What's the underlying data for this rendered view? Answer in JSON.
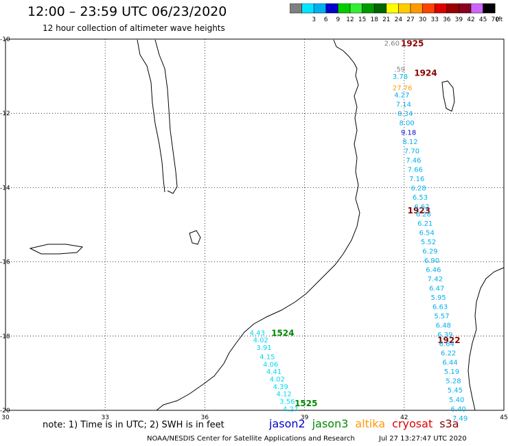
{
  "header": {
    "title": "12:00 – 23:59 UTC 06/23/2020",
    "subtitle": "12 hour collection of altimeter wave heights"
  },
  "legend": {
    "unit": "(ft)",
    "bins": [
      {
        "label": "",
        "color": "#808080"
      },
      {
        "label": "3",
        "color": "#00e5ff"
      },
      {
        "label": "6",
        "color": "#00b0ee"
      },
      {
        "label": "9",
        "color": "#0000cc"
      },
      {
        "label": "12",
        "color": "#00cc00"
      },
      {
        "label": "15",
        "color": "#33ee33"
      },
      {
        "label": "18",
        "color": "#009900"
      },
      {
        "label": "21",
        "color": "#006600"
      },
      {
        "label": "24",
        "color": "#ffff00"
      },
      {
        "label": "27",
        "color": "#ffcc00"
      },
      {
        "label": "30",
        "color": "#ff9900"
      },
      {
        "label": "33",
        "color": "#ff4400"
      },
      {
        "label": "36",
        "color": "#dd0000"
      },
      {
        "label": "39",
        "color": "#990000"
      },
      {
        "label": "42",
        "color": "#880022"
      },
      {
        "label": "45",
        "color": "#cc66ff"
      },
      {
        "label": "70",
        "color": "#000000"
      }
    ]
  },
  "axes": {
    "lon_labels": [
      "30",
      "33",
      "36",
      "39",
      "42",
      "45"
    ],
    "lat_labels": [
      "-10",
      "-12",
      "-14",
      "-16",
      "-18",
      "-20"
    ]
  },
  "colors": {
    "gray": "#808080",
    "cyan": "#00b0ee",
    "light_cyan": "#00d8f0",
    "orange": "#ff9900",
    "dark_red": "#8b0000",
    "navy": "#0000cc",
    "green": "#008800"
  },
  "track_labels": [
    {
      "text": "1925",
      "lon": 41.9,
      "lat": -10.1,
      "color": "#8b0000"
    },
    {
      "text": "1924",
      "lon": 42.3,
      "lat": -10.9,
      "color": "#8b0000"
    },
    {
      "text": "1923",
      "lon": 42.1,
      "lat": -14.6,
      "color": "#8b0000"
    },
    {
      "text": "1922",
      "lon": 43.0,
      "lat": -18.1,
      "color": "#8b0000"
    },
    {
      "text": "1524",
      "lon": 38.0,
      "lat": -17.9,
      "color": "#008800"
    },
    {
      "text": "1525",
      "lon": 38.7,
      "lat": -19.8,
      "color": "#008800"
    }
  ],
  "wave_labels": [
    {
      "text": "2.60",
      "lon": 41.4,
      "lat": -10.1,
      "color": "#808080"
    },
    {
      "text": ".59",
      "lon": 41.7,
      "lat": -10.8,
      "color": "#808080"
    },
    {
      "text": "3.78",
      "lon": 41.65,
      "lat": -11.0,
      "color": "#00b0ee"
    },
    {
      "text": "27.76",
      "lon": 41.65,
      "lat": -11.3,
      "color": "#ff9900"
    },
    {
      "text": "4.27",
      "lon": 41.7,
      "lat": -11.5,
      "color": "#00b0ee"
    },
    {
      "text": "7.14",
      "lon": 41.75,
      "lat": -11.75,
      "color": "#00b0ee"
    },
    {
      "text": "8.34",
      "lon": 41.8,
      "lat": -12.0,
      "color": "#00b0ee"
    },
    {
      "text": "8.00",
      "lon": 41.85,
      "lat": -12.25,
      "color": "#00b0ee"
    },
    {
      "text": "9.18",
      "lon": 41.9,
      "lat": -12.5,
      "color": "#0000cc"
    },
    {
      "text": "8.12",
      "lon": 41.95,
      "lat": -12.75,
      "color": "#00b0ee"
    },
    {
      "text": "7.70",
      "lon": 42.0,
      "lat": -13.0,
      "color": "#00b0ee"
    },
    {
      "text": "7.46",
      "lon": 42.05,
      "lat": -13.25,
      "color": "#00b0ee"
    },
    {
      "text": "7.66",
      "lon": 42.1,
      "lat": -13.5,
      "color": "#00b0ee"
    },
    {
      "text": "7.16",
      "lon": 42.15,
      "lat": -13.75,
      "color": "#00b0ee"
    },
    {
      "text": "6.28",
      "lon": 42.2,
      "lat": -14.0,
      "color": "#00b0ee"
    },
    {
      "text": "6.53",
      "lon": 42.25,
      "lat": -14.25,
      "color": "#00b0ee"
    },
    {
      "text": "6.62",
      "lon": 42.3,
      "lat": -14.5,
      "color": "#00b0ee"
    },
    {
      "text": "6.28",
      "lon": 42.35,
      "lat": -14.7,
      "color": "#00b0ee"
    },
    {
      "text": "6.21",
      "lon": 42.4,
      "lat": -14.95,
      "color": "#00b0ee"
    },
    {
      "text": "6.54",
      "lon": 42.45,
      "lat": -15.2,
      "color": "#00b0ee"
    },
    {
      "text": "5.52",
      "lon": 42.5,
      "lat": -15.45,
      "color": "#00b0ee"
    },
    {
      "text": "6.29",
      "lon": 42.55,
      "lat": -15.7,
      "color": "#00b0ee"
    },
    {
      "text": "6.90",
      "lon": 42.6,
      "lat": -15.95,
      "color": "#00b0ee"
    },
    {
      "text": "6.46",
      "lon": 42.65,
      "lat": -16.2,
      "color": "#00b0ee"
    },
    {
      "text": "7.42",
      "lon": 42.7,
      "lat": -16.45,
      "color": "#00b0ee"
    },
    {
      "text": "6.47",
      "lon": 42.75,
      "lat": -16.7,
      "color": "#00b0ee"
    },
    {
      "text": "5.95",
      "lon": 42.8,
      "lat": -16.95,
      "color": "#00b0ee"
    },
    {
      "text": "6.63",
      "lon": 42.85,
      "lat": -17.2,
      "color": "#00b0ee"
    },
    {
      "text": "5.57",
      "lon": 42.9,
      "lat": -17.45,
      "color": "#00b0ee"
    },
    {
      "text": "6.48",
      "lon": 42.95,
      "lat": -17.7,
      "color": "#00b0ee"
    },
    {
      "text": "6.39",
      "lon": 43.0,
      "lat": -17.95,
      "color": "#00b0ee"
    },
    {
      "text": "6.64",
      "lon": 43.05,
      "lat": -18.2,
      "color": "#00b0ee"
    },
    {
      "text": "6.22",
      "lon": 43.1,
      "lat": -18.45,
      "color": "#00b0ee"
    },
    {
      "text": "6.44",
      "lon": 43.15,
      "lat": -18.7,
      "color": "#00b0ee"
    },
    {
      "text": "5.19",
      "lon": 43.2,
      "lat": -18.95,
      "color": "#00b0ee"
    },
    {
      "text": "5.28",
      "lon": 43.25,
      "lat": -19.2,
      "color": "#00b0ee"
    },
    {
      "text": "5.45",
      "lon": 43.3,
      "lat": -19.45,
      "color": "#00b0ee"
    },
    {
      "text": "5.40",
      "lon": 43.35,
      "lat": -19.7,
      "color": "#00b0ee"
    },
    {
      "text": "6.40",
      "lon": 43.4,
      "lat": -19.95,
      "color": "#00b0ee"
    },
    {
      "text": "7.49",
      "lon": 43.45,
      "lat": -20.2,
      "color": "#00b0ee"
    },
    {
      "text": "4.43",
      "lon": 37.35,
      "lat": -17.9,
      "color": "#00d8f0"
    },
    {
      "text": "4.02",
      "lon": 37.45,
      "lat": -18.1,
      "color": "#00d8f0"
    },
    {
      "text": "3.91",
      "lon": 37.55,
      "lat": -18.3,
      "color": "#00d8f0"
    },
    {
      "text": "4.15",
      "lon": 37.65,
      "lat": -18.55,
      "color": "#00d8f0"
    },
    {
      "text": "4.06",
      "lon": 37.75,
      "lat": -18.75,
      "color": "#00d8f0"
    },
    {
      "text": "4.41",
      "lon": 37.85,
      "lat": -18.95,
      "color": "#00d8f0"
    },
    {
      "text": "4.02",
      "lon": 37.95,
      "lat": -19.15,
      "color": "#00d8f0"
    },
    {
      "text": "4.39",
      "lon": 38.05,
      "lat": -19.35,
      "color": "#00d8f0"
    },
    {
      "text": "4.12",
      "lon": 38.15,
      "lat": -19.55,
      "color": "#00d8f0"
    },
    {
      "text": "3.56",
      "lon": 38.25,
      "lat": -19.75,
      "color": "#00d8f0"
    },
    {
      "text": "4.27",
      "lon": 38.35,
      "lat": -19.95,
      "color": "#00d8f0"
    }
  ],
  "footer": {
    "note": "note:  1) Time is in UTC;  2) SWH is in feet",
    "satellites": [
      {
        "name": "jason2",
        "color": "#0000cc"
      },
      {
        "name": "jason3",
        "color": "#008800"
      },
      {
        "name": "altika",
        "color": "#ff9900"
      },
      {
        "name": "cryosat",
        "color": "#dd0000"
      },
      {
        "name": "s3a",
        "color": "#880000"
      }
    ],
    "credit": "NOAA/NESDIS Center for Satellite Applications and Research",
    "timestamp": "Jul 27 13:27:47 UTC 2020"
  }
}
